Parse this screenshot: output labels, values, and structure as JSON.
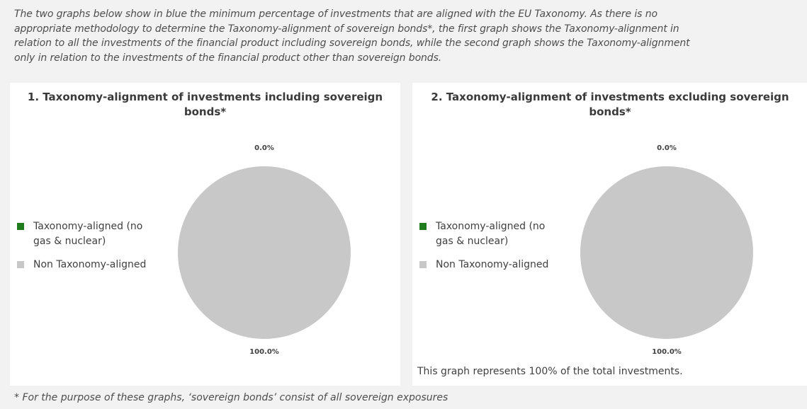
{
  "intro": {
    "lines": [
      "The two graphs below show in blue the minimum percentage of investments that are aligned with the EU Taxonomy. As there is no",
      "appropriate methodology to determine the Taxonomy-alignment of sovereign bonds*, the first graph shows the Taxonomy-alignment in",
      "relation to all the investments of the financial product including sovereign bonds, while the second graph shows the Taxonomy-alignment",
      "only in relation to the investments of the financial product other than sovereign bonds."
    ]
  },
  "colors": {
    "aligned": "#1e7b1e",
    "non_aligned": "#c8c8c8"
  },
  "chart_data": [
    {
      "type": "pie",
      "title_lines": [
        "1. Taxonomy-alignment of investments including sovereign",
        "bonds*"
      ],
      "categories": [
        "Taxonomy-aligned (no gas & nuclear)",
        "Non Taxonomy-aligned"
      ],
      "legend_lines": [
        [
          "Taxonomy-aligned (no",
          "gas & nuclear)"
        ],
        [
          "Non Taxonomy-aligned"
        ]
      ],
      "values": [
        0.0,
        100.0
      ],
      "data_labels": [
        "0.0%",
        "100.0%"
      ],
      "legend_position": "left"
    },
    {
      "type": "pie",
      "title_lines": [
        "2. Taxonomy-alignment of investments excluding sovereign",
        "bonds*"
      ],
      "categories": [
        "Taxonomy-aligned (no gas & nuclear)",
        "Non Taxonomy-aligned"
      ],
      "legend_lines": [
        [
          "Taxonomy-aligned (no",
          "gas & nuclear)"
        ],
        [
          "Non Taxonomy-aligned"
        ]
      ],
      "values": [
        0.0,
        100.0
      ],
      "data_labels": [
        "0.0%",
        "100.0%"
      ],
      "legend_position": "left",
      "note": "This graph represents 100% of the total investments."
    }
  ],
  "footnote": "* For the purpose of these graphs, ‘sovereign bonds’ consist of all sovereign exposures"
}
